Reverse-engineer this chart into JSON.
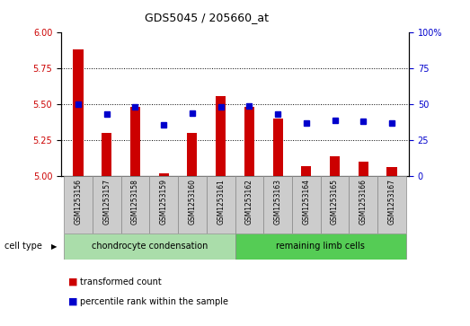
{
  "title": "GDS5045 / 205660_at",
  "samples": [
    "GSM1253156",
    "GSM1253157",
    "GSM1253158",
    "GSM1253159",
    "GSM1253160",
    "GSM1253161",
    "GSM1253162",
    "GSM1253163",
    "GSM1253164",
    "GSM1253165",
    "GSM1253166",
    "GSM1253167"
  ],
  "transformed_count": [
    5.88,
    5.3,
    5.48,
    5.02,
    5.3,
    5.56,
    5.48,
    5.4,
    5.07,
    5.14,
    5.1,
    5.06
  ],
  "percentile_rank": [
    50,
    43,
    48,
    36,
    44,
    48,
    49,
    43,
    37,
    39,
    38,
    37
  ],
  "group1_label": "chondrocyte condensation",
  "group2_label": "remaining limb cells",
  "group1_count": 6,
  "group2_count": 6,
  "cell_type_label": "cell type",
  "legend1": "transformed count",
  "legend2": "percentile rank within the sample",
  "ylim_left": [
    5.0,
    6.0
  ],
  "ylim_right": [
    0,
    100
  ],
  "yticks_left": [
    5.0,
    5.25,
    5.5,
    5.75,
    6.0
  ],
  "yticks_right": [
    0,
    25,
    50,
    75,
    100
  ],
  "bar_color": "#cc0000",
  "dot_color": "#0000cc",
  "group1_bg": "#aaddaa",
  "group2_bg": "#55cc55",
  "tick_bg": "#cccccc",
  "grid_color": "#000000"
}
